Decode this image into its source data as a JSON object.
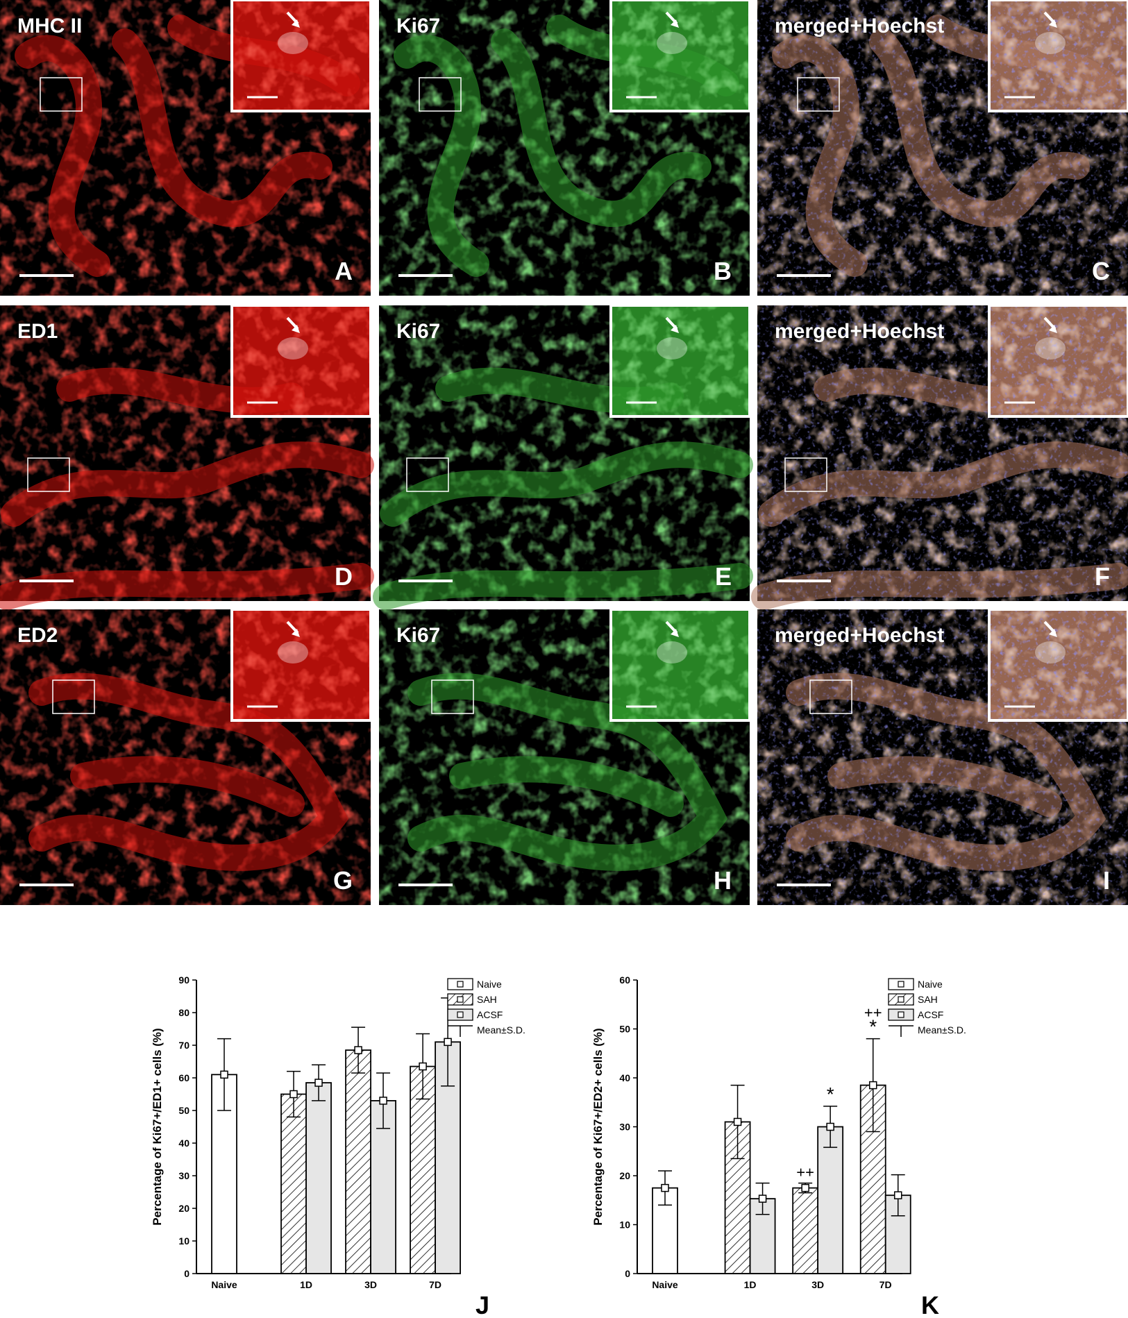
{
  "micrograph_panels": [
    {
      "label": "MHC II",
      "letter": "A",
      "channel": "red"
    },
    {
      "label": "Ki67",
      "letter": "B",
      "channel": "green"
    },
    {
      "label": "merged+Hoechst",
      "letter": "C",
      "channel": "merged"
    },
    {
      "label": "ED1",
      "letter": "D",
      "channel": "red"
    },
    {
      "label": "Ki67",
      "letter": "E",
      "channel": "green"
    },
    {
      "label": "merged+Hoechst",
      "letter": "F",
      "channel": "merged"
    },
    {
      "label": "ED2",
      "letter": "G",
      "channel": "red"
    },
    {
      "label": "Ki67",
      "letter": "H",
      "channel": "green"
    },
    {
      "label": "merged+Hoechst",
      "letter": "I",
      "channel": "merged"
    }
  ],
  "colors": {
    "red_channel": "#d0120c",
    "green_channel": "#2f9a2c",
    "merged_tissue": "#b07860",
    "hoechst": "#3a3ad0"
  },
  "legend_entries": [
    "Naive",
    "SAH",
    "ACSF",
    "Mean±S.D."
  ],
  "chart_data": [
    {
      "type": "bar",
      "panel_letter": "J",
      "ylabel": "Percentage of Ki67+/ED1+ cells (%)",
      "ylim": [
        0,
        90
      ],
      "yticks": [
        0,
        10,
        20,
        30,
        40,
        50,
        60,
        70,
        80,
        90
      ],
      "categories": [
        "Naive",
        "1D",
        "3D",
        "7D"
      ],
      "series": [
        {
          "name": "Naive",
          "values": [
            61,
            null,
            null,
            null
          ],
          "sd": [
            11,
            null,
            null,
            null
          ],
          "pattern": "white"
        },
        {
          "name": "SAH",
          "values": [
            null,
            55,
            68.5,
            63.5
          ],
          "sd": [
            null,
            7,
            7,
            10
          ],
          "pattern": "hatch"
        },
        {
          "name": "ACSF",
          "values": [
            null,
            58.5,
            53,
            71
          ],
          "sd": [
            null,
            5.5,
            8.5,
            13.5
          ],
          "pattern": "grey"
        }
      ],
      "annotations": [],
      "legend": "top-right"
    },
    {
      "type": "bar",
      "panel_letter": "K",
      "ylabel": "Percentage of Ki67+/ED2+ cells (%)",
      "ylim": [
        0,
        60
      ],
      "yticks": [
        0,
        10,
        20,
        30,
        40,
        50,
        60
      ],
      "categories": [
        "Naive",
        "1D",
        "3D",
        "7D"
      ],
      "series": [
        {
          "name": "Naive",
          "values": [
            17.5,
            null,
            null,
            null
          ],
          "sd": [
            3.5,
            null,
            null,
            null
          ],
          "pattern": "white"
        },
        {
          "name": "SAH",
          "values": [
            null,
            31,
            17.5,
            38.5
          ],
          "sd": [
            null,
            7.5,
            1,
            9.5
          ],
          "pattern": "hatch"
        },
        {
          "name": "ACSF",
          "values": [
            null,
            15.3,
            30,
            16
          ],
          "sd": [
            null,
            3.2,
            4.2,
            4.2
          ],
          "pattern": "grey"
        }
      ],
      "annotations": [
        {
          "category": "3D",
          "series": "SAH",
          "text": "++"
        },
        {
          "category": "3D",
          "series": "ACSF",
          "text": "*"
        },
        {
          "category": "7D",
          "series": "SAH",
          "text": "++"
        },
        {
          "category": "7D",
          "series": "SAH",
          "text": "*"
        }
      ],
      "legend": "top-right"
    }
  ]
}
